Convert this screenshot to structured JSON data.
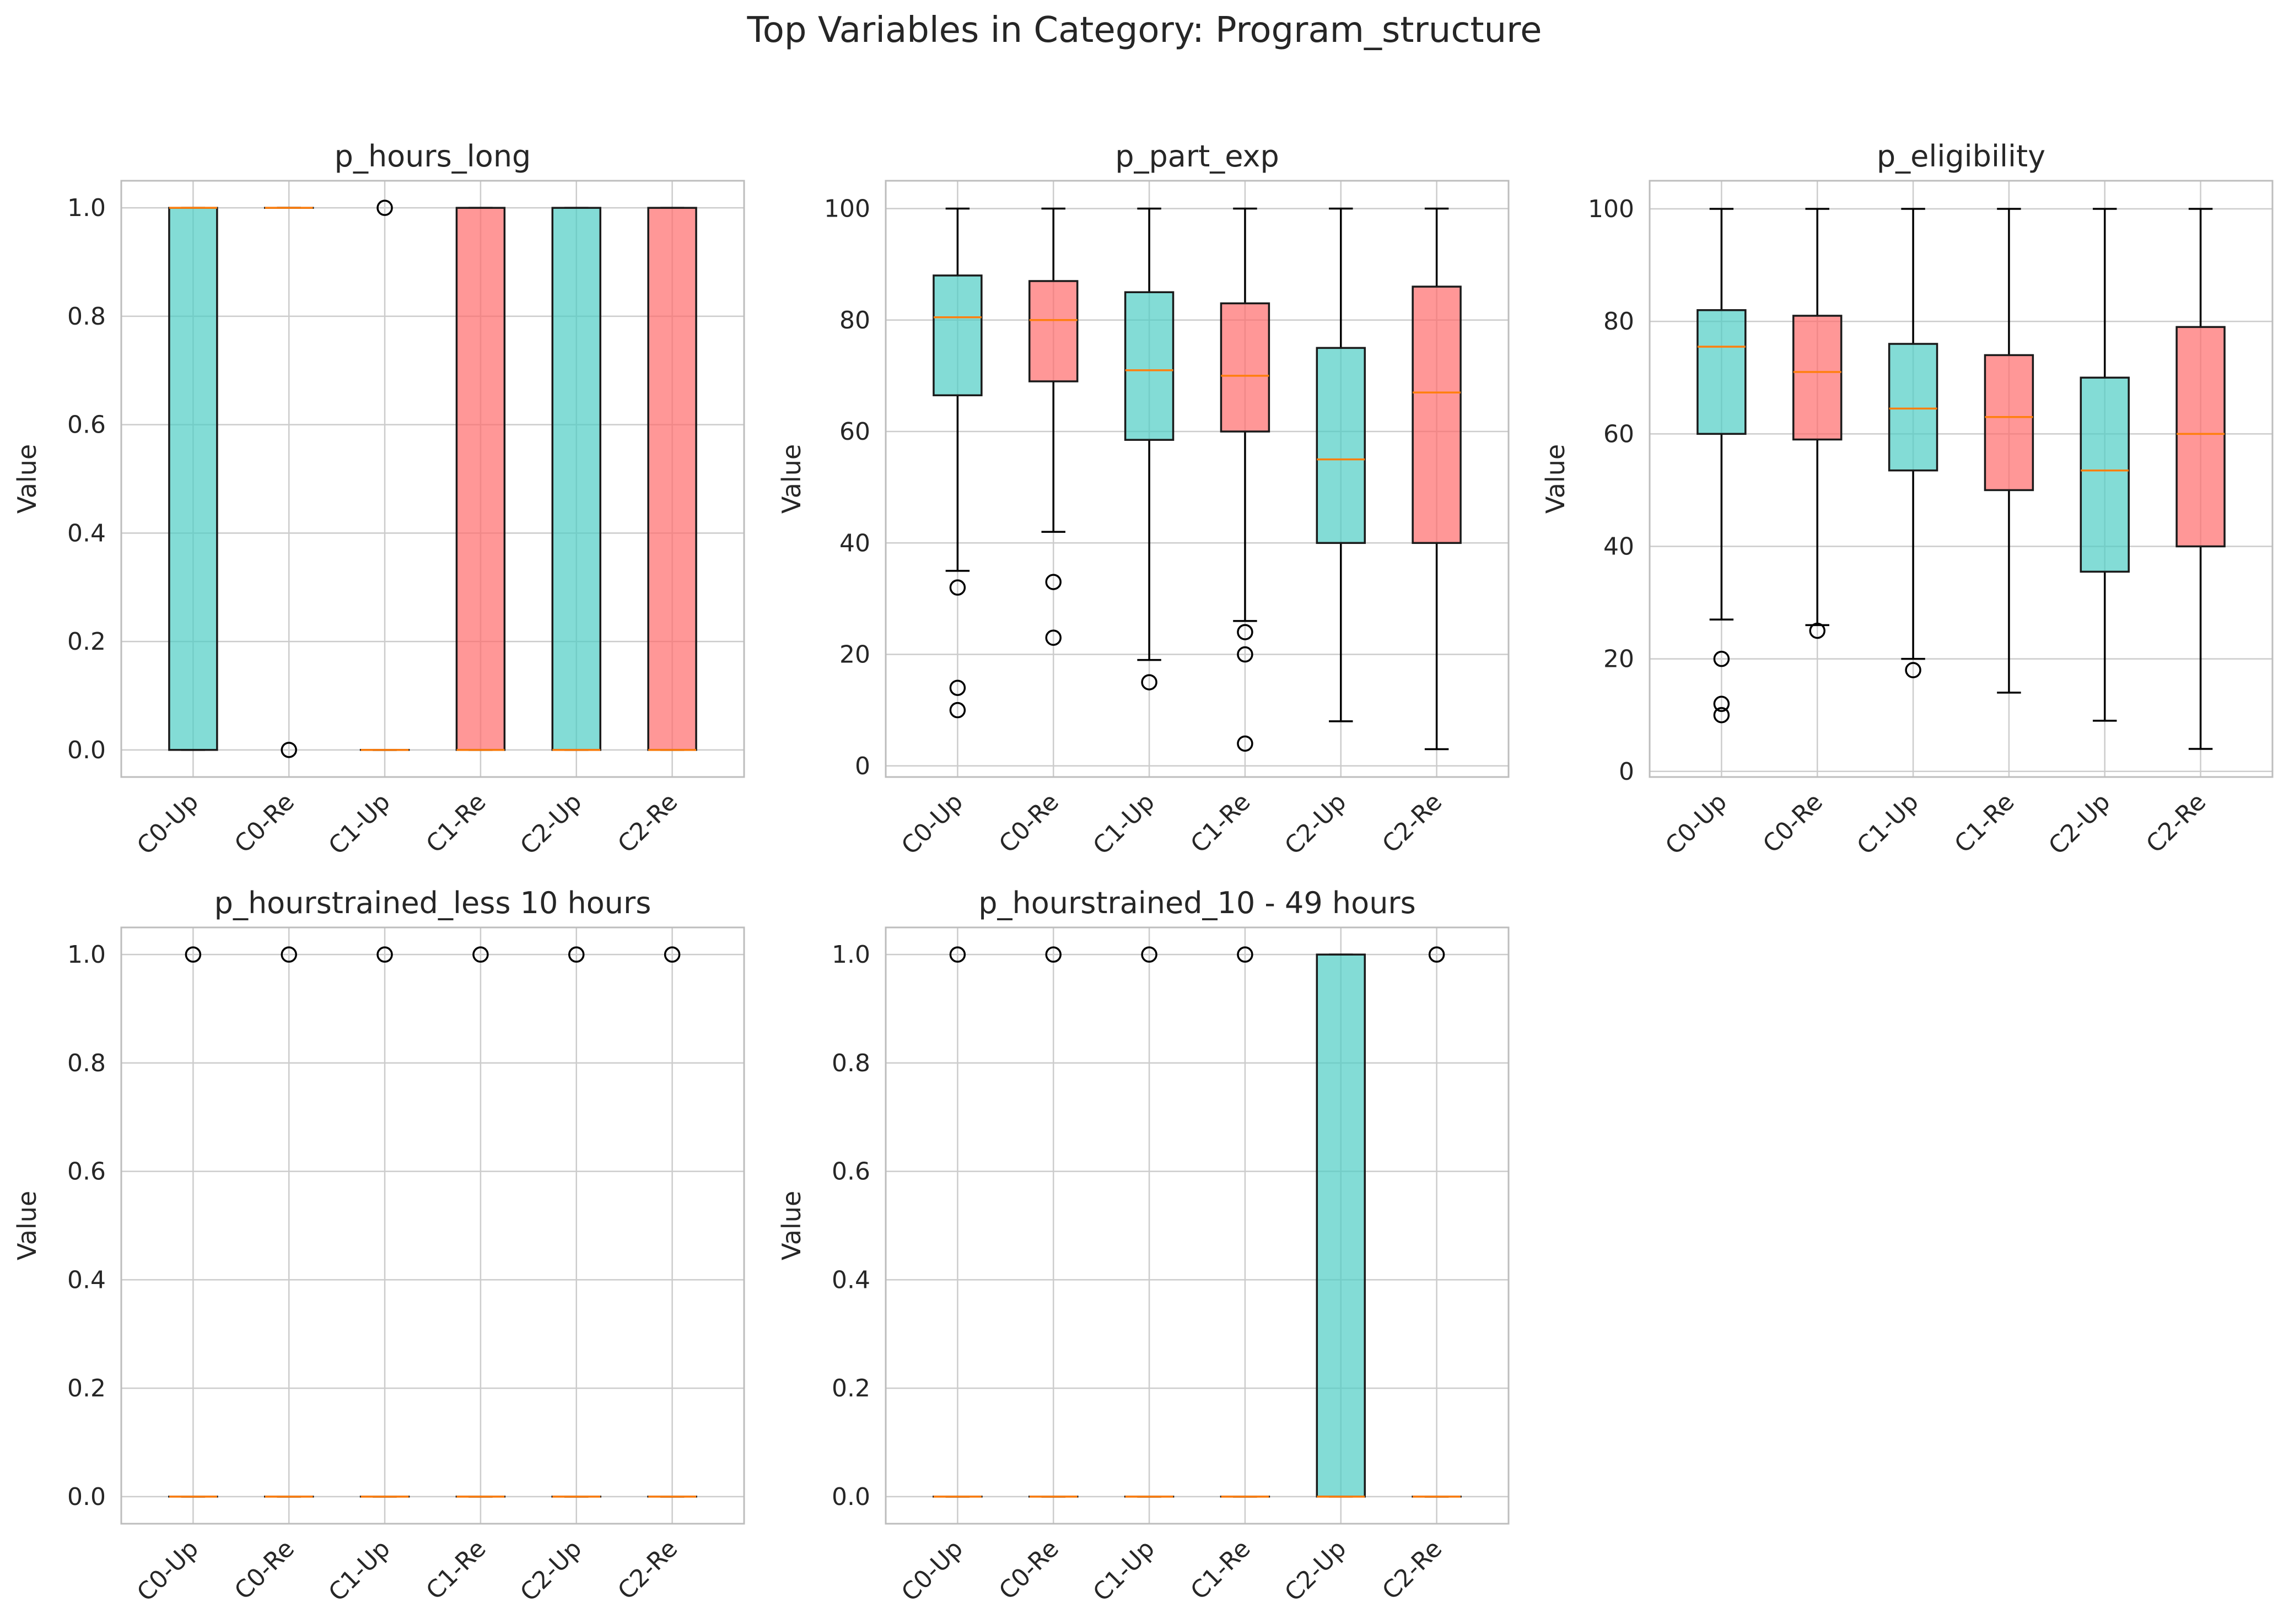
{
  "title": "Top Variables in Category: Program_structure",
  "colors": {
    "up": "#4ecdc4",
    "re": "#ff6b6b",
    "median": "#ff7f0e",
    "grid": "#cccccc",
    "frame": "#bdbdbd"
  },
  "chart_data": [
    {
      "type": "box",
      "title": "p_hours_long",
      "ylabel": "Value",
      "ylim": [
        -0.05,
        1.05
      ],
      "yticks": [
        0.0,
        0.2,
        0.4,
        0.6,
        0.8,
        1.0
      ],
      "ytick_labels": [
        "0.0",
        "0.2",
        "0.4",
        "0.6",
        "0.8",
        "1.0"
      ],
      "categories": [
        "C0-Up",
        "C0-Re",
        "C1-Up",
        "C1-Re",
        "C2-Up",
        "C2-Re"
      ],
      "boxes": [
        {
          "q1": 0,
          "median": 1,
          "q3": 1,
          "whisker_low": 0,
          "whisker_high": 1,
          "outliers": []
        },
        {
          "q1": 1,
          "median": 1,
          "q3": 1,
          "whisker_low": 1,
          "whisker_high": 1,
          "outliers": [
            0
          ]
        },
        {
          "q1": 0,
          "median": 0,
          "q3": 0,
          "whisker_low": 0,
          "whisker_high": 0,
          "outliers": [
            1
          ]
        },
        {
          "q1": 0,
          "median": 0,
          "q3": 1,
          "whisker_low": 0,
          "whisker_high": 1,
          "outliers": []
        },
        {
          "q1": 0,
          "median": 0,
          "q3": 1,
          "whisker_low": 0,
          "whisker_high": 1,
          "outliers": []
        },
        {
          "q1": 0,
          "median": 0,
          "q3": 1,
          "whisker_low": 0,
          "whisker_high": 1,
          "outliers": []
        }
      ]
    },
    {
      "type": "box",
      "title": "p_part_exp",
      "ylabel": "Value",
      "ylim": [
        -2,
        105
      ],
      "yticks": [
        0,
        20,
        40,
        60,
        80,
        100
      ],
      "ytick_labels": [
        "0",
        "20",
        "40",
        "60",
        "80",
        "100"
      ],
      "categories": [
        "C0-Up",
        "C0-Re",
        "C1-Up",
        "C1-Re",
        "C2-Up",
        "C2-Re"
      ],
      "boxes": [
        {
          "q1": 66.5,
          "median": 80.5,
          "q3": 88,
          "whisker_low": 35,
          "whisker_high": 100,
          "outliers": [
            32,
            14,
            10
          ]
        },
        {
          "q1": 69,
          "median": 80,
          "q3": 87,
          "whisker_low": 42,
          "whisker_high": 100,
          "outliers": [
            33,
            23
          ]
        },
        {
          "q1": 58.5,
          "median": 71,
          "q3": 85,
          "whisker_low": 19,
          "whisker_high": 100,
          "outliers": [
            15
          ]
        },
        {
          "q1": 60,
          "median": 70,
          "q3": 83,
          "whisker_low": 26,
          "whisker_high": 100,
          "outliers": [
            24,
            20,
            4
          ]
        },
        {
          "q1": 40,
          "median": 55,
          "q3": 75,
          "whisker_low": 8,
          "whisker_high": 100,
          "outliers": []
        },
        {
          "q1": 40,
          "median": 67,
          "q3": 86,
          "whisker_low": 3,
          "whisker_high": 100,
          "outliers": []
        }
      ]
    },
    {
      "type": "box",
      "title": "p_eligibility",
      "ylabel": "Value",
      "ylim": [
        -1,
        105
      ],
      "yticks": [
        0,
        20,
        40,
        60,
        80,
        100
      ],
      "ytick_labels": [
        "0",
        "20",
        "40",
        "60",
        "80",
        "100"
      ],
      "categories": [
        "C0-Up",
        "C0-Re",
        "C1-Up",
        "C1-Re",
        "C2-Up",
        "C2-Re"
      ],
      "boxes": [
        {
          "q1": 60,
          "median": 75.5,
          "q3": 82,
          "whisker_low": 27,
          "whisker_high": 100,
          "outliers": [
            20,
            12,
            10
          ]
        },
        {
          "q1": 59,
          "median": 71,
          "q3": 81,
          "whisker_low": 26,
          "whisker_high": 100,
          "outliers": [
            25
          ]
        },
        {
          "q1": 53.5,
          "median": 64.5,
          "q3": 76,
          "whisker_low": 20,
          "whisker_high": 100,
          "outliers": [
            18
          ]
        },
        {
          "q1": 50,
          "median": 63,
          "q3": 74,
          "whisker_low": 14,
          "whisker_high": 100,
          "outliers": []
        },
        {
          "q1": 35.5,
          "median": 53.5,
          "q3": 70,
          "whisker_low": 9,
          "whisker_high": 100,
          "outliers": []
        },
        {
          "q1": 40,
          "median": 60,
          "q3": 79,
          "whisker_low": 4,
          "whisker_high": 100,
          "outliers": []
        }
      ]
    },
    {
      "type": "box",
      "title": "p_hourstrained_less 10 hours",
      "ylabel": "Value",
      "ylim": [
        -0.05,
        1.05
      ],
      "yticks": [
        0.0,
        0.2,
        0.4,
        0.6,
        0.8,
        1.0
      ],
      "ytick_labels": [
        "0.0",
        "0.2",
        "0.4",
        "0.6",
        "0.8",
        "1.0"
      ],
      "categories": [
        "C0-Up",
        "C0-Re",
        "C1-Up",
        "C1-Re",
        "C2-Up",
        "C2-Re"
      ],
      "boxes": [
        {
          "q1": 0,
          "median": 0,
          "q3": 0,
          "whisker_low": 0,
          "whisker_high": 0,
          "outliers": [
            1
          ]
        },
        {
          "q1": 0,
          "median": 0,
          "q3": 0,
          "whisker_low": 0,
          "whisker_high": 0,
          "outliers": [
            1
          ]
        },
        {
          "q1": 0,
          "median": 0,
          "q3": 0,
          "whisker_low": 0,
          "whisker_high": 0,
          "outliers": [
            1
          ]
        },
        {
          "q1": 0,
          "median": 0,
          "q3": 0,
          "whisker_low": 0,
          "whisker_high": 0,
          "outliers": [
            1
          ]
        },
        {
          "q1": 0,
          "median": 0,
          "q3": 0,
          "whisker_low": 0,
          "whisker_high": 0,
          "outliers": [
            1
          ]
        },
        {
          "q1": 0,
          "median": 0,
          "q3": 0,
          "whisker_low": 0,
          "whisker_high": 0,
          "outliers": [
            1
          ]
        }
      ]
    },
    {
      "type": "box",
      "title": "p_hourstrained_10 - 49 hours",
      "ylabel": "Value",
      "ylim": [
        -0.05,
        1.05
      ],
      "yticks": [
        0.0,
        0.2,
        0.4,
        0.6,
        0.8,
        1.0
      ],
      "ytick_labels": [
        "0.0",
        "0.2",
        "0.4",
        "0.6",
        "0.8",
        "1.0"
      ],
      "categories": [
        "C0-Up",
        "C0-Re",
        "C1-Up",
        "C1-Re",
        "C2-Up",
        "C2-Re"
      ],
      "boxes": [
        {
          "q1": 0,
          "median": 0,
          "q3": 0,
          "whisker_low": 0,
          "whisker_high": 0,
          "outliers": [
            1
          ]
        },
        {
          "q1": 0,
          "median": 0,
          "q3": 0,
          "whisker_low": 0,
          "whisker_high": 0,
          "outliers": [
            1
          ]
        },
        {
          "q1": 0,
          "median": 0,
          "q3": 0,
          "whisker_low": 0,
          "whisker_high": 0,
          "outliers": [
            1
          ]
        },
        {
          "q1": 0,
          "median": 0,
          "q3": 0,
          "whisker_low": 0,
          "whisker_high": 0,
          "outliers": [
            1
          ]
        },
        {
          "q1": 0,
          "median": 0,
          "q3": 1,
          "whisker_low": 0,
          "whisker_high": 1,
          "outliers": []
        },
        {
          "q1": 0,
          "median": 0,
          "q3": 0,
          "whisker_low": 0,
          "whisker_high": 0,
          "outliers": [
            1
          ]
        }
      ]
    }
  ]
}
